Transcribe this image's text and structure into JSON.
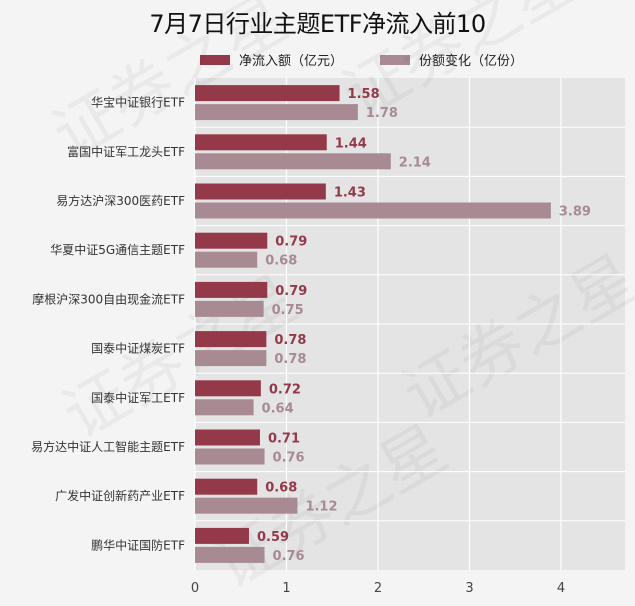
{
  "chart_data": {
    "type": "bar",
    "orientation": "horizontal",
    "title": "7月7日行业主题ETF净流入前10",
    "categories": [
      "华宝中证银行ETF",
      "富国中证军工龙头ETF",
      "易方达沪深300医药ETF",
      "华夏中证5G通信主题ETF",
      "摩根沪深300自由现金流ETF",
      "国泰中证煤炭ETF",
      "国泰中证军工ETF",
      "易方达中证人工智能主题ETF",
      "广发中证创新药产业ETF",
      "鹏华中证国防ETF"
    ],
    "series": [
      {
        "name": "净流入额（亿元）",
        "color": "#94394a",
        "labels": [
          "1.58",
          "1.44",
          "1.43",
          "0.79",
          "0.79",
          "0.78",
          "0.72",
          "0.71",
          "0.68",
          "0.59"
        ],
        "values": [
          1.58,
          1.44,
          1.43,
          0.79,
          0.79,
          0.78,
          0.72,
          0.71,
          0.68,
          0.59
        ]
      },
      {
        "name": "份额变化（亿份）",
        "color": "#a88a93",
        "labels": [
          "1.78",
          "2.14",
          "3.89",
          "0.68",
          "0.75",
          "0.78",
          "0.64",
          "0.76",
          "1.12",
          "0.76"
        ],
        "values": [
          1.78,
          2.14,
          3.89,
          0.68,
          0.75,
          0.78,
          0.64,
          0.76,
          1.12,
          0.76
        ]
      }
    ],
    "xlim": [
      0,
      4.7
    ],
    "xticks": [
      "0",
      "1",
      "2",
      "3",
      "4"
    ],
    "xtick_values": [
      0,
      1,
      2,
      3,
      4
    ],
    "grid": true,
    "legend_position": "top"
  },
  "watermark": {
    "text": "证券之星"
  }
}
